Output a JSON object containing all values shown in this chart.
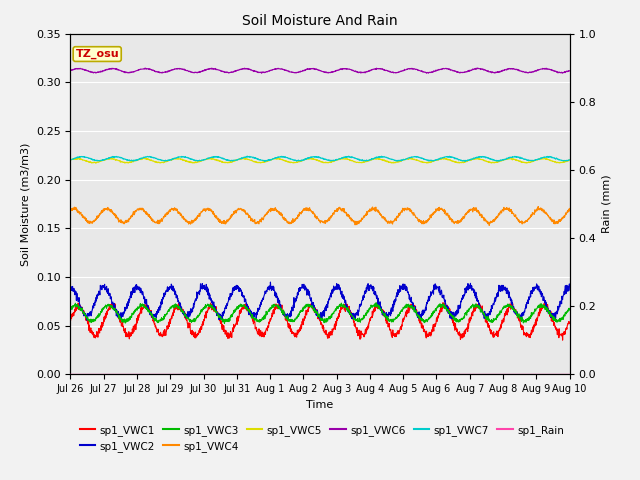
{
  "title": "Soil Moisture And Rain",
  "xlabel": "Time",
  "ylabel_left": "Soil Moisture (m3/m3)",
  "ylabel_right": "Rain (mm)",
  "ylim_left": [
    0.0,
    0.35
  ],
  "ylim_right": [
    0.0,
    1.0
  ],
  "yticks_left": [
    0.0,
    0.05,
    0.1,
    0.15,
    0.2,
    0.25,
    0.3,
    0.35
  ],
  "yticks_right": [
    0.0,
    0.2,
    0.4,
    0.6,
    0.8,
    1.0
  ],
  "xtick_labels": [
    "Jul 26",
    "Jul 27",
    "Jul 28",
    "Jul 29",
    "Jul 30",
    "Jul 31",
    "Aug 1",
    "Aug 2",
    "Aug 3",
    "Aug 4",
    "Aug 5",
    "Aug 6",
    "Aug 7",
    "Aug 8",
    "Aug 9",
    "Aug 10"
  ],
  "n_days": 15,
  "annotation_text": "TZ_osu",
  "annotation_color": "#cc0000",
  "annotation_bg": "#ffffcc",
  "annotation_border": "#bbaa00",
  "series": [
    {
      "name": "sp1_VWC1",
      "color": "#ff0000",
      "base": 0.055,
      "amp": 0.015,
      "period": 1.0,
      "phase": 0.0,
      "ax": "left"
    },
    {
      "name": "sp1_VWC2",
      "color": "#0000cc",
      "base": 0.075,
      "amp": 0.015,
      "period": 1.0,
      "phase": 0.25,
      "ax": "left"
    },
    {
      "name": "sp1_VWC3",
      "color": "#00bb00",
      "base": 0.063,
      "amp": 0.008,
      "period": 1.0,
      "phase": 0.1,
      "ax": "left"
    },
    {
      "name": "sp1_VWC4",
      "color": "#ff8800",
      "base": 0.163,
      "amp": 0.007,
      "period": 1.0,
      "phase": 0.15,
      "ax": "left"
    },
    {
      "name": "sp1_VWC5",
      "color": "#dddd00",
      "base": 0.2195,
      "amp": 0.002,
      "period": 1.0,
      "phase": 0.05,
      "ax": "left"
    },
    {
      "name": "sp1_VWC6",
      "color": "#9900aa",
      "base": 0.312,
      "amp": 0.002,
      "period": 1.0,
      "phase": 0.0,
      "ax": "left"
    },
    {
      "name": "sp1_VWC7",
      "color": "#00cccc",
      "base": 0.2215,
      "amp": 0.002,
      "period": 1.0,
      "phase": -0.1,
      "ax": "left"
    },
    {
      "name": "sp1_Rain",
      "color": "#ff44aa",
      "base": 0.0,
      "amp": 0.0,
      "period": 1.0,
      "phase": 0.0,
      "ax": "right"
    }
  ],
  "bg_color": "#f2f2f2",
  "plot_bg_color": "#e8e8e8"
}
